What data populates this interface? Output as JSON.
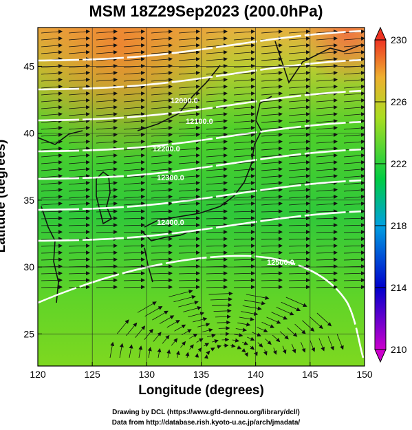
{
  "title": "MSM 18Z29Sep2023 (200.0hPa)",
  "x_axis": {
    "label": "Longitude (degrees)",
    "ticks": [
      "120",
      "125",
      "130",
      "135",
      "140",
      "145",
      "150"
    ]
  },
  "y_axis": {
    "label": "Latitude  (degrees)",
    "ticks": [
      "25",
      "30",
      "35",
      "40",
      "45"
    ]
  },
  "colorbar": {
    "ticks": [
      "230",
      "226",
      "222",
      "218",
      "214",
      "210"
    ],
    "min": 210,
    "max": 230
  },
  "contour_labels": [
    "12000.0",
    "12100.0",
    "12200.0",
    "12300.0",
    "12400.0",
    "12500.0"
  ],
  "credits": {
    "line1": "Drawing by DCL (https://www.gfd-dennou.org/library/dcl/)",
    "line2": "Data from http://database.rish.kyoto-u.ac.jp/arch/jmadata/"
  },
  "colors": {
    "low": "#cc00cc",
    "mid": "#00cc44",
    "high": "#ee3322"
  }
}
